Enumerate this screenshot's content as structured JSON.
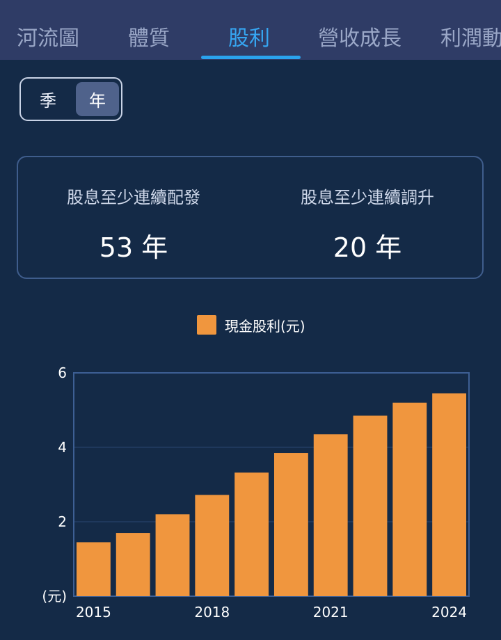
{
  "tabs": [
    {
      "label": "河流圖",
      "active": false
    },
    {
      "label": "體質",
      "active": false
    },
    {
      "label": "股利",
      "active": true
    },
    {
      "label": "營收成長",
      "active": false
    },
    {
      "label": "利潤動",
      "active": false
    }
  ],
  "period_toggle": {
    "quarter_label": "季",
    "year_label": "年",
    "selected": "年"
  },
  "stats": {
    "consecutive_paid": {
      "label": "股息至少連續配發",
      "value": "53 年"
    },
    "consecutive_raised": {
      "label": "股息至少連續調升",
      "value": "20 年"
    }
  },
  "colors": {
    "bar": "#f0963e",
    "accent": "#2aa3ee",
    "background": "#142a47"
  },
  "chart_data": {
    "type": "bar",
    "legend": "現金股利(元)",
    "categories": [
      "2015",
      "2016",
      "2017",
      "2018",
      "2019",
      "2020",
      "2021",
      "2022",
      "2023",
      "2024"
    ],
    "x_tick_labels": [
      "2015",
      "2018",
      "2021",
      "2024"
    ],
    "values": [
      1.45,
      1.7,
      2.2,
      2.72,
      3.32,
      3.85,
      4.35,
      4.85,
      5.2,
      5.45
    ],
    "ylim": [
      0,
      6
    ],
    "yticks": [
      "2",
      "4",
      "6"
    ],
    "ylabel": "(元)",
    "grid": true,
    "legend_position": "top-center"
  }
}
